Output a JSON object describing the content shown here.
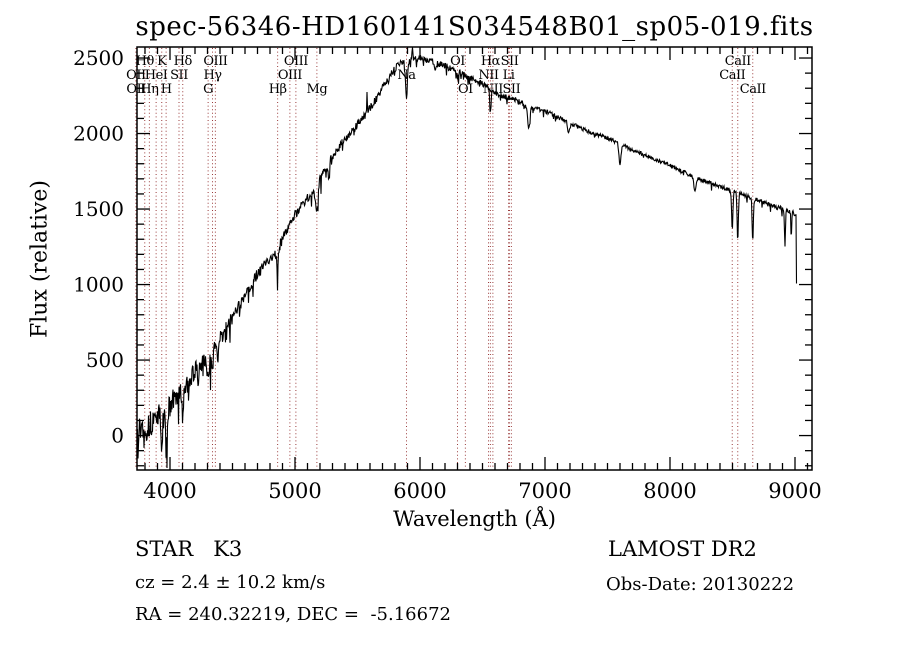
{
  "window": {
    "background": "#ffffff"
  },
  "annotations": {
    "class_line": "STAR   K3",
    "cz_line": "cz = 2.4 ± 10.2 km/s",
    "radec_line": "RA = 240.32219, DEC =  -5.16672",
    "survey": "LAMOST DR2",
    "obs_date": "Obs-Date: 20130222"
  },
  "chart_data": {
    "type": "line",
    "title": "spec-56346-HD160141S034548B01_sp05-019.fits",
    "xlabel": "Wavelength (Å)",
    "ylabel": "Flux (relative)",
    "xlim": [
      3736,
      9136
    ],
    "ylim": [
      -228,
      2573
    ],
    "x_ticks": [
      4000,
      5000,
      6000,
      7000,
      8000,
      9000
    ],
    "y_ticks": [
      0,
      500,
      1000,
      1500,
      2000,
      2500
    ],
    "x_minor_step": 100,
    "y_minor_step": 100,
    "grid": false,
    "line_color": "#000000",
    "marker_line_color": "#9b3d3d",
    "spectral_lines": [
      {
        "label": "OII",
        "wavelength": 3727,
        "row": 2
      },
      {
        "label": "OII",
        "wavelength": 3729,
        "row": 3
      },
      {
        "label": "Hθ",
        "wavelength": 3798,
        "row": 1
      },
      {
        "label": "Hη",
        "wavelength": 3835,
        "row": 3
      },
      {
        "label": "HeI",
        "wavelength": 3889,
        "row": 2
      },
      {
        "label": "K",
        "wavelength": 3934,
        "row": 1
      },
      {
        "label": "H",
        "wavelength": 3969,
        "row": 3
      },
      {
        "label": "SII",
        "wavelength": 4072,
        "row": 2
      },
      {
        "label": "Hδ",
        "wavelength": 4102,
        "row": 1
      },
      {
        "label": "G",
        "wavelength": 4305,
        "row": 3
      },
      {
        "label": "Hγ",
        "wavelength": 4340,
        "row": 2
      },
      {
        "label": "OIII",
        "wavelength": 4363,
        "row": 1
      },
      {
        "label": "Hβ",
        "wavelength": 4861,
        "row": 3
      },
      {
        "label": "OIII",
        "wavelength": 4959,
        "row": 2
      },
      {
        "label": "OIII",
        "wavelength": 5007,
        "row": 1
      },
      {
        "label": "Mg",
        "wavelength": 5175,
        "row": 3
      },
      {
        "label": "Na",
        "wavelength": 5892,
        "row": 2
      },
      {
        "label": "OI",
        "wavelength": 6300,
        "row": 1
      },
      {
        "label": "OI",
        "wavelength": 6363,
        "row": 3
      },
      {
        "label": "NII",
        "wavelength": 6548,
        "row": 2
      },
      {
        "label": "Hα",
        "wavelength": 6563,
        "row": 1
      },
      {
        "label": "NII",
        "wavelength": 6583,
        "row": 3
      },
      {
        "label": "Li",
        "wavelength": 6708,
        "row": 2
      },
      {
        "label": "SII",
        "wavelength": 6716,
        "row": 1
      },
      {
        "label": "SII",
        "wavelength": 6731,
        "row": 3
      },
      {
        "label": "CaII",
        "wavelength": 8498,
        "row": 2
      },
      {
        "label": "CaII",
        "wavelength": 8542,
        "row": 1
      },
      {
        "label": "CaII",
        "wavelength": 8662,
        "row": 3
      }
    ],
    "continuum_points": [
      [
        3740,
        30
      ],
      [
        3780,
        60
      ],
      [
        3820,
        50
      ],
      [
        3860,
        90
      ],
      [
        3900,
        140
      ],
      [
        3940,
        130
      ],
      [
        3980,
        160
      ],
      [
        4020,
        230
      ],
      [
        4060,
        260
      ],
      [
        4100,
        290
      ],
      [
        4150,
        360
      ],
      [
        4200,
        430
      ],
      [
        4250,
        470
      ],
      [
        4300,
        500
      ],
      [
        4350,
        560
      ],
      [
        4400,
        640
      ],
      [
        4450,
        710
      ],
      [
        4500,
        780
      ],
      [
        4550,
        850
      ],
      [
        4600,
        930
      ],
      [
        4650,
        1000
      ],
      [
        4700,
        1070
      ],
      [
        4750,
        1120
      ],
      [
        4800,
        1170
      ],
      [
        4850,
        1210
      ],
      [
        4900,
        1300
      ],
      [
        4950,
        1390
      ],
      [
        5000,
        1460
      ],
      [
        5050,
        1520
      ],
      [
        5100,
        1570
      ],
      [
        5150,
        1610
      ],
      [
        5200,
        1700
      ],
      [
        5250,
        1780
      ],
      [
        5300,
        1850
      ],
      [
        5350,
        1910
      ],
      [
        5400,
        1960
      ],
      [
        5450,
        2010
      ],
      [
        5500,
        2060
      ],
      [
        5550,
        2110
      ],
      [
        5600,
        2170
      ],
      [
        5650,
        2230
      ],
      [
        5700,
        2300
      ],
      [
        5750,
        2370
      ],
      [
        5800,
        2430
      ],
      [
        5850,
        2470
      ],
      [
        5900,
        2480
      ],
      [
        5950,
        2500
      ],
      [
        6000,
        2505
      ],
      [
        6050,
        2490
      ],
      [
        6100,
        2475
      ],
      [
        6150,
        2460
      ],
      [
        6200,
        2450
      ],
      [
        6250,
        2430
      ],
      [
        6300,
        2410
      ],
      [
        6350,
        2390
      ],
      [
        6400,
        2370
      ],
      [
        6450,
        2350
      ],
      [
        6500,
        2330
      ],
      [
        6550,
        2300
      ],
      [
        6600,
        2270
      ],
      [
        6650,
        2250
      ],
      [
        6700,
        2240
      ],
      [
        6750,
        2230
      ],
      [
        6800,
        2210
      ],
      [
        6870,
        2170
      ],
      [
        6950,
        2160
      ],
      [
        7000,
        2150
      ],
      [
        7100,
        2110
      ],
      [
        7200,
        2070
      ],
      [
        7300,
        2030
      ],
      [
        7400,
        2000
      ],
      [
        7500,
        1970
      ],
      [
        7600,
        1930
      ],
      [
        7700,
        1890
      ],
      [
        7800,
        1860
      ],
      [
        7900,
        1820
      ],
      [
        8000,
        1790
      ],
      [
        8100,
        1750
      ],
      [
        8200,
        1710
      ],
      [
        8300,
        1680
      ],
      [
        8400,
        1650
      ],
      [
        8500,
        1620
      ],
      [
        8600,
        1590
      ],
      [
        8700,
        1560
      ],
      [
        8800,
        1530
      ],
      [
        8900,
        1500
      ],
      [
        9000,
        1470
      ],
      [
        9008,
        1450
      ],
      [
        9012,
        1020
      ]
    ],
    "absorption_features": [
      [
        3934,
        230,
        6
      ],
      [
        3969,
        230,
        6
      ],
      [
        4102,
        160,
        5
      ],
      [
        4226,
        150,
        5
      ],
      [
        4305,
        130,
        7
      ],
      [
        4340,
        120,
        5
      ],
      [
        4383,
        100,
        5
      ],
      [
        4861,
        150,
        5
      ],
      [
        5175,
        170,
        9
      ],
      [
        5270,
        100,
        6
      ],
      [
        5577,
        -130,
        2
      ],
      [
        5892,
        260,
        7
      ],
      [
        5940,
        -90,
        3
      ],
      [
        6122,
        60,
        4
      ],
      [
        6300,
        50,
        3
      ],
      [
        6563,
        160,
        5
      ],
      [
        6870,
        140,
        7
      ],
      [
        7190,
        70,
        8
      ],
      [
        7600,
        130,
        8
      ],
      [
        8200,
        90,
        9
      ],
      [
        8498,
        250,
        5
      ],
      [
        8542,
        310,
        5
      ],
      [
        8662,
        280,
        5
      ],
      [
        8920,
        230,
        4
      ],
      [
        8970,
        180,
        3
      ]
    ],
    "noise_profile": [
      [
        3740,
        95
      ],
      [
        4000,
        75
      ],
      [
        4300,
        55
      ],
      [
        4600,
        40
      ],
      [
        5000,
        30
      ],
      [
        5500,
        25
      ],
      [
        6000,
        22
      ],
      [
        6500,
        18
      ],
      [
        7000,
        14
      ],
      [
        7500,
        13
      ],
      [
        8000,
        12
      ],
      [
        8500,
        13
      ],
      [
        9012,
        16
      ]
    ]
  }
}
